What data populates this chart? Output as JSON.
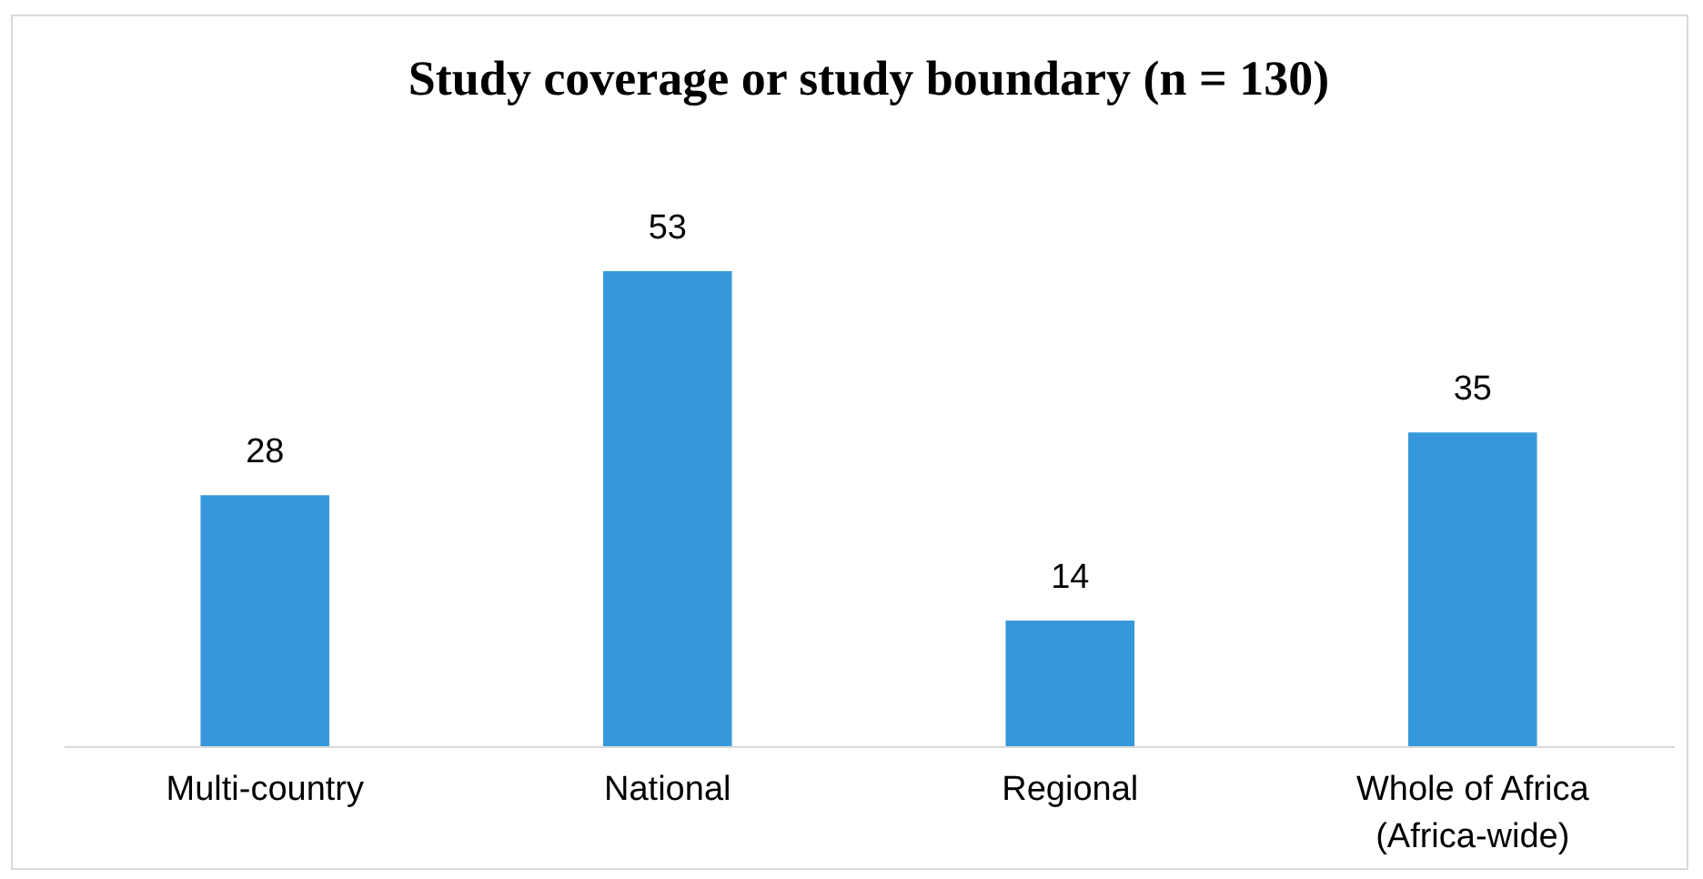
{
  "chart_data": {
    "type": "bar",
    "title": "Study coverage or study boundary (n = 130)",
    "categories": [
      "Multi-country",
      "National",
      "Regional",
      "Whole of Africa (Africa-wide)"
    ],
    "values": [
      28,
      53,
      14,
      35
    ],
    "color": "#3698db",
    "data_labels": true,
    "grid": false,
    "tick_labels": "x"
  }
}
